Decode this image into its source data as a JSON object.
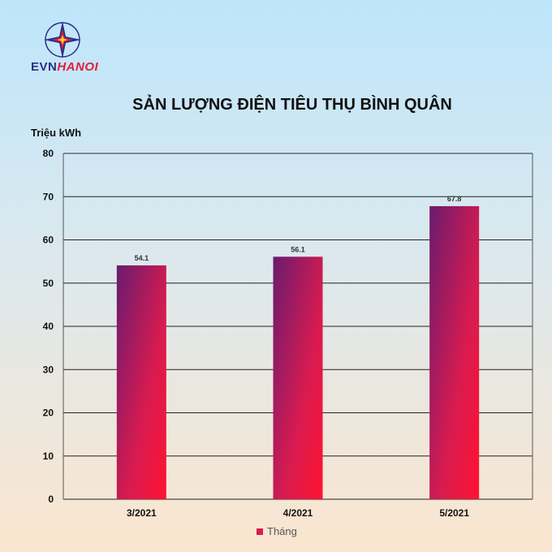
{
  "brand": {
    "logo_text_1": "EVN",
    "logo_text_2": "HANOI"
  },
  "colors": {
    "bar_start": "#6a1b6e",
    "bar_end": "#ff1330",
    "grid": "#222222",
    "brand_blue": "#2b3088",
    "brand_red": "#e31b3c"
  },
  "chart_data": {
    "type": "bar",
    "title": "SẢN LƯỢNG ĐIỆN TIÊU THỤ BÌNH QUÂN",
    "ylabel": "Triệu kWh",
    "xlabel": "",
    "categories": [
      "3/2021",
      "4/2021",
      "5/2021"
    ],
    "series": [
      {
        "name": "Tháng",
        "values": [
          54.1,
          56.1,
          67.8
        ]
      }
    ],
    "data_labels": [
      "54.1",
      "56.1",
      "67.8"
    ],
    "ylim": [
      0,
      80
    ],
    "yticks": [
      0,
      10,
      20,
      30,
      40,
      50,
      60,
      70,
      80
    ],
    "grid": true,
    "legend": "bottom"
  }
}
